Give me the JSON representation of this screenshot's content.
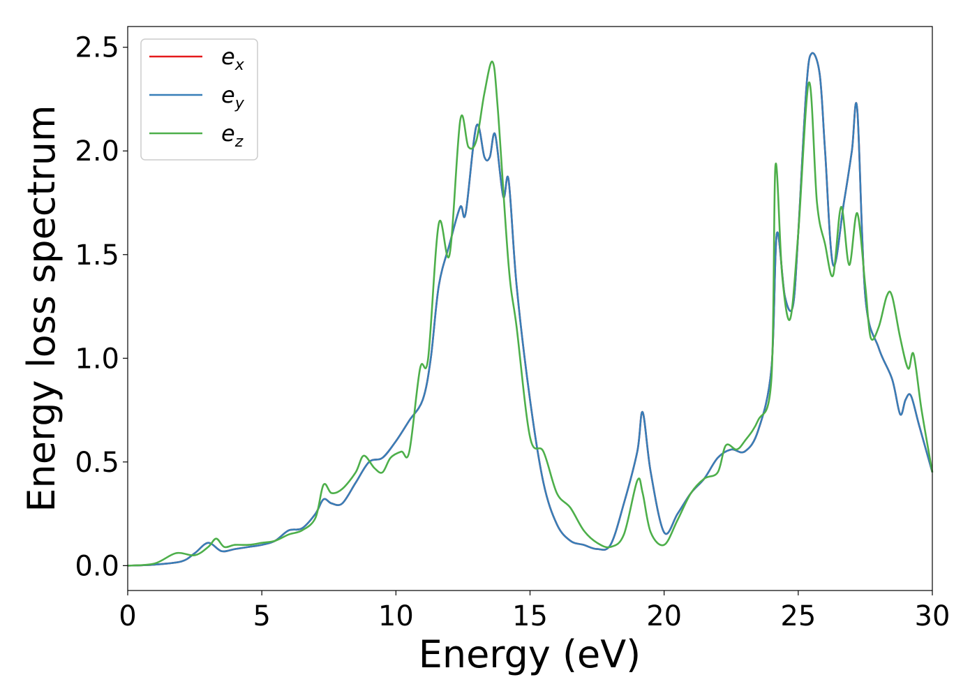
{
  "chart_data": {
    "type": "line",
    "title": "",
    "xlabel": "Energy (eV)",
    "ylabel": "Energy loss spectrum",
    "xlim": [
      0,
      30
    ],
    "ylim": [
      -0.12,
      2.6
    ],
    "xticks": [
      0,
      5,
      10,
      15,
      20,
      25,
      30
    ],
    "xtick_labels": [
      "0",
      "5",
      "10",
      "15",
      "20",
      "25",
      "30"
    ],
    "yticks": [
      0.0,
      0.5,
      1.0,
      1.5,
      2.0,
      2.5
    ],
    "ytick_labels": [
      "0.0",
      "0.5",
      "1.0",
      "1.5",
      "2.0",
      "2.5"
    ],
    "grid": false,
    "legend_position": "top-left",
    "series": [
      {
        "name": "e_x",
        "base": "e",
        "sub": "x",
        "color": "#e41a1c",
        "x": [
          0,
          1,
          2,
          2.5,
          3,
          3.5,
          4,
          4.5,
          5,
          5.5,
          6,
          6.5,
          7,
          7.3,
          7.6,
          8,
          8.5,
          9,
          9.5,
          10,
          10.5,
          11,
          11.3,
          11.6,
          12,
          12.4,
          12.6,
          13,
          13.3,
          13.5,
          13.7,
          14,
          14.2,
          14.5,
          15,
          15.5,
          16,
          16.5,
          17,
          17.5,
          18,
          18.5,
          19,
          19.2,
          19.5,
          20,
          20.5,
          21,
          21.5,
          22,
          22.5,
          23,
          23.5,
          24,
          24.2,
          24.5,
          24.8,
          25,
          25.3,
          25.5,
          25.8,
          26,
          26.3,
          26.7,
          27,
          27.2,
          27.5,
          28,
          28.5,
          28.8,
          29,
          29.2,
          29.5,
          30
        ],
        "y": [
          0,
          0.005,
          0.02,
          0.06,
          0.11,
          0.07,
          0.08,
          0.09,
          0.1,
          0.12,
          0.17,
          0.18,
          0.25,
          0.32,
          0.3,
          0.3,
          0.4,
          0.5,
          0.52,
          0.6,
          0.7,
          0.8,
          1.0,
          1.35,
          1.55,
          1.73,
          1.7,
          2.12,
          1.97,
          1.97,
          2.08,
          1.78,
          1.86,
          1.35,
          0.8,
          0.4,
          0.2,
          0.12,
          0.1,
          0.08,
          0.1,
          0.3,
          0.55,
          0.74,
          0.45,
          0.16,
          0.25,
          0.35,
          0.42,
          0.52,
          0.56,
          0.55,
          0.65,
          0.95,
          1.6,
          1.3,
          1.25,
          1.6,
          2.3,
          2.47,
          2.37,
          2.0,
          1.45,
          1.75,
          2.0,
          2.2,
          1.3,
          1.05,
          0.9,
          0.73,
          0.8,
          0.82,
          0.68,
          0.45
        ]
      },
      {
        "name": "e_y",
        "base": "e",
        "sub": "y",
        "color": "#377eb8",
        "x": [
          0,
          1,
          2,
          2.5,
          3,
          3.5,
          4,
          4.5,
          5,
          5.5,
          6,
          6.5,
          7,
          7.3,
          7.6,
          8,
          8.5,
          9,
          9.5,
          10,
          10.5,
          11,
          11.3,
          11.6,
          12,
          12.4,
          12.6,
          13,
          13.3,
          13.5,
          13.7,
          14,
          14.2,
          14.5,
          15,
          15.5,
          16,
          16.5,
          17,
          17.5,
          18,
          18.5,
          19,
          19.2,
          19.5,
          20,
          20.5,
          21,
          21.5,
          22,
          22.5,
          23,
          23.5,
          24,
          24.2,
          24.5,
          24.8,
          25,
          25.3,
          25.5,
          25.8,
          26,
          26.3,
          26.7,
          27,
          27.2,
          27.5,
          28,
          28.5,
          28.8,
          29,
          29.2,
          29.5,
          30
        ],
        "y": [
          0,
          0.005,
          0.02,
          0.06,
          0.11,
          0.07,
          0.08,
          0.09,
          0.1,
          0.12,
          0.17,
          0.18,
          0.25,
          0.32,
          0.3,
          0.3,
          0.4,
          0.5,
          0.52,
          0.6,
          0.7,
          0.8,
          1.0,
          1.35,
          1.55,
          1.73,
          1.7,
          2.12,
          1.97,
          1.97,
          2.08,
          1.78,
          1.86,
          1.35,
          0.8,
          0.4,
          0.2,
          0.12,
          0.1,
          0.08,
          0.1,
          0.3,
          0.55,
          0.74,
          0.45,
          0.16,
          0.25,
          0.35,
          0.42,
          0.52,
          0.56,
          0.55,
          0.65,
          0.95,
          1.6,
          1.3,
          1.25,
          1.6,
          2.3,
          2.47,
          2.37,
          2.0,
          1.45,
          1.75,
          2.0,
          2.2,
          1.3,
          1.05,
          0.9,
          0.73,
          0.8,
          0.82,
          0.68,
          0.45
        ]
      },
      {
        "name": "e_z",
        "base": "e",
        "sub": "z",
        "color": "#4daf4a",
        "x": [
          0,
          1,
          1.8,
          2.5,
          3,
          3.3,
          3.6,
          4,
          4.5,
          5,
          5.5,
          6,
          6.5,
          7,
          7.3,
          7.6,
          8,
          8.5,
          8.8,
          9.2,
          9.5,
          9.8,
          10.2,
          10.5,
          10.9,
          11.2,
          11.6,
          12,
          12.4,
          12.7,
          13,
          13.3,
          13.6,
          13.8,
          14.2,
          14.5,
          15,
          15.5,
          16,
          16.5,
          17,
          17.5,
          18,
          18.5,
          19,
          19.2,
          19.5,
          20,
          20.5,
          21,
          21.5,
          22,
          22.3,
          22.7,
          23,
          23.5,
          24,
          24.15,
          24.4,
          24.7,
          25,
          25.4,
          25.7,
          26,
          26.3,
          26.6,
          26.9,
          27.2,
          27.5,
          27.7,
          28,
          28.3,
          28.5,
          28.8,
          29.1,
          29.3,
          29.6,
          30
        ],
        "y": [
          0,
          0.01,
          0.06,
          0.05,
          0.09,
          0.13,
          0.09,
          0.1,
          0.1,
          0.11,
          0.12,
          0.15,
          0.17,
          0.23,
          0.39,
          0.35,
          0.37,
          0.45,
          0.53,
          0.47,
          0.45,
          0.52,
          0.55,
          0.55,
          0.95,
          1.0,
          1.65,
          1.5,
          2.15,
          2.02,
          2.05,
          2.28,
          2.43,
          2.2,
          1.45,
          1.15,
          0.62,
          0.55,
          0.35,
          0.28,
          0.17,
          0.11,
          0.09,
          0.15,
          0.41,
          0.35,
          0.16,
          0.1,
          0.22,
          0.35,
          0.42,
          0.45,
          0.58,
          0.56,
          0.6,
          0.7,
          0.9,
          1.93,
          1.4,
          1.19,
          1.6,
          2.33,
          1.75,
          1.55,
          1.4,
          1.73,
          1.45,
          1.7,
          1.35,
          1.1,
          1.15,
          1.3,
          1.3,
          1.1,
          0.95,
          1.02,
          0.75,
          0.45
        ]
      }
    ]
  }
}
